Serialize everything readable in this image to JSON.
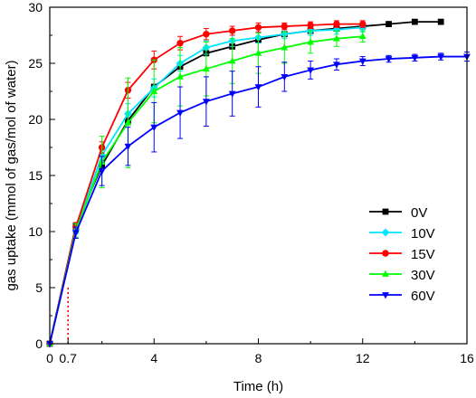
{
  "chart_data": {
    "type": "line",
    "title": "",
    "xlabel": "Time (h)",
    "ylabel": "gas uptake (mmol of gas/mol of water)",
    "xlim": [
      0,
      16
    ],
    "ylim": [
      0,
      30
    ],
    "xticks": [
      0,
      0.7,
      4,
      8,
      12,
      16
    ],
    "xtick_labels": [
      "0",
      "0.7",
      "4",
      "8",
      "12",
      "16"
    ],
    "yticks": [
      0,
      5,
      10,
      15,
      20,
      25,
      30
    ],
    "ytick_labels": [
      "0",
      "5",
      "10",
      "15",
      "20",
      "25",
      "30"
    ],
    "grid": false,
    "legend_position": "bottom-right",
    "annotations": [
      {
        "type": "vertical-dotted-line",
        "x": 0.7,
        "y_to": 5.2,
        "color": "#ff0000"
      }
    ],
    "series": [
      {
        "name": "0V",
        "color": "#000000",
        "marker": "square",
        "x": [
          0,
          1,
          2,
          3,
          4,
          5,
          6,
          7,
          8,
          9,
          10,
          11,
          12,
          13,
          14,
          15
        ],
        "y": [
          0,
          10.5,
          15.9,
          19.9,
          22.9,
          24.7,
          25.9,
          26.5,
          27.1,
          27.6,
          27.9,
          28.1,
          28.3,
          28.5,
          28.7,
          28.7
        ]
      },
      {
        "name": "10V",
        "color": "#00e5ff",
        "marker": "diamond",
        "x": [
          0,
          1,
          2,
          3,
          4,
          5,
          6,
          7,
          8,
          9,
          10,
          11,
          12
        ],
        "y": [
          0,
          10.2,
          16.8,
          20.5,
          22.8,
          25.0,
          26.4,
          27.0,
          27.3,
          27.6,
          27.9,
          28.0,
          28.2
        ],
        "err": [
          0,
          0.4,
          0.6,
          0.9,
          0.8,
          0.7,
          0.6,
          0.5,
          0.5,
          0.4,
          0.4,
          0.4,
          0.4
        ]
      },
      {
        "name": "15V",
        "color": "#ff0000",
        "marker": "circle",
        "x": [
          0,
          1,
          2,
          3,
          4,
          5,
          6,
          7,
          8,
          9,
          10,
          11,
          12
        ],
        "y": [
          0,
          10.4,
          17.5,
          22.6,
          25.3,
          26.8,
          27.6,
          27.9,
          28.2,
          28.3,
          28.4,
          28.5,
          28.5
        ],
        "err": [
          0,
          0.4,
          0.5,
          0.7,
          0.8,
          0.6,
          0.5,
          0.4,
          0.4,
          0.3,
          0.3,
          0.3,
          0.3
        ]
      },
      {
        "name": "30V",
        "color": "#00ff00",
        "marker": "triangle-up",
        "x": [
          0,
          1,
          2,
          3,
          4,
          5,
          6,
          7,
          8,
          9,
          10,
          11,
          12
        ],
        "y": [
          0,
          10.1,
          16.2,
          19.7,
          22.5,
          23.8,
          24.5,
          25.2,
          25.9,
          26.4,
          26.9,
          27.2,
          27.4
        ],
        "err": [
          0,
          0.6,
          2.3,
          4.0,
          2.8,
          2.6,
          2.4,
          2.0,
          1.8,
          1.4,
          1.0,
          0.7,
          0.5
        ]
      },
      {
        "name": "60V",
        "color": "#0000ff",
        "marker": "triangle-down",
        "x": [
          0,
          1,
          2,
          3,
          4,
          5,
          6,
          7,
          8,
          9,
          10,
          11,
          12,
          13,
          14,
          15,
          16
        ],
        "y": [
          0,
          9.9,
          15.4,
          17.6,
          19.3,
          20.6,
          21.6,
          22.3,
          22.9,
          23.8,
          24.4,
          24.9,
          25.2,
          25.4,
          25.5,
          25.6,
          25.6
        ],
        "err": [
          0,
          0.5,
          1.3,
          1.7,
          2.2,
          2.3,
          2.2,
          2.0,
          1.8,
          1.3,
          0.8,
          0.5,
          0.4,
          0.3,
          0.3,
          0.3,
          0.4
        ]
      }
    ]
  }
}
